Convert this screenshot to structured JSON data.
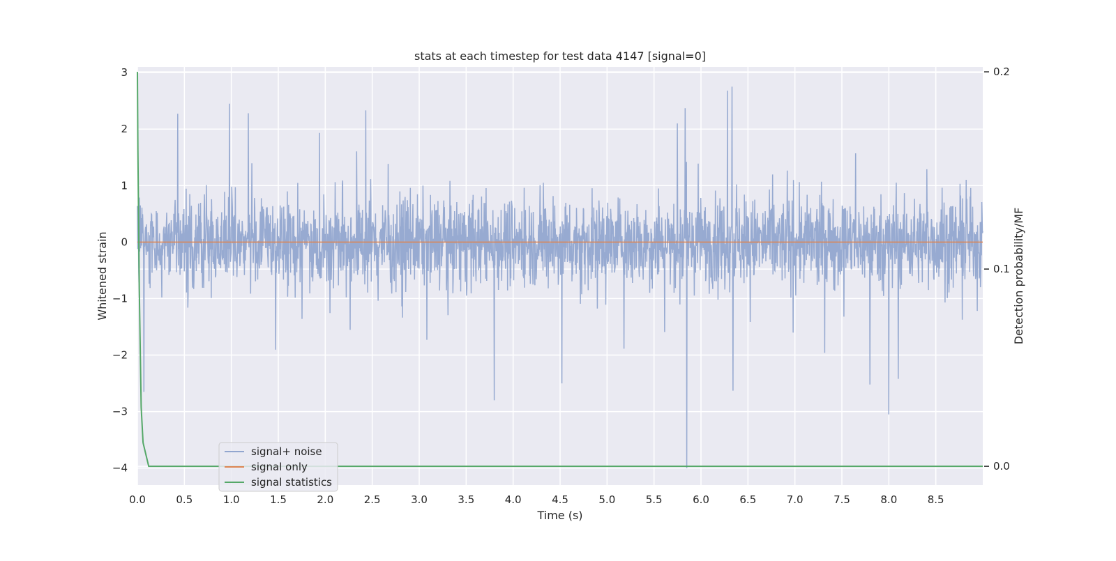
{
  "chart_data": {
    "type": "line",
    "title": "stats at each timestep for test data 4147 [signal=0]",
    "xlabel": "Time (s)",
    "ylabel": "Whitened strain",
    "y2label": "Detection probability/MF",
    "xlim": [
      0.0,
      9.0
    ],
    "ylim": [
      -4.3,
      3.1
    ],
    "y2lim": [
      -0.0095,
      0.2025
    ],
    "xticks": [
      "0.0",
      "0.5",
      "1.0",
      "1.5",
      "2.0",
      "2.5",
      "3.0",
      "3.5",
      "4.0",
      "4.5",
      "5.0",
      "5.5",
      "6.0",
      "6.5",
      "7.0",
      "7.5",
      "8.0",
      "8.5"
    ],
    "yticks": [
      "3",
      "2",
      "1",
      "0",
      "−1",
      "−2",
      "−3",
      "−4"
    ],
    "y2ticks": [
      "0.2",
      "0.1",
      "0.0"
    ],
    "grid": true,
    "legend_position": "lower-left",
    "series": [
      {
        "name": "signal+ noise",
        "color": "#92a6cf",
        "axis": "left",
        "description": "whitened noise fluctuating roughly between -1.5 and 1.5",
        "notable_peaks": [
          {
            "x": 0.43,
            "y": 2.27
          },
          {
            "x": 0.98,
            "y": 2.45
          },
          {
            "x": 1.18,
            "y": 2.28
          },
          {
            "x": 2.43,
            "y": 2.33
          },
          {
            "x": 6.33,
            "y": 2.75
          },
          {
            "x": 6.28,
            "y": 2.68
          },
          {
            "x": 5.83,
            "y": 2.37
          }
        ],
        "notable_troughs": [
          {
            "x": 0.07,
            "y": -2.65
          },
          {
            "x": 3.8,
            "y": -2.8
          },
          {
            "x": 4.52,
            "y": -2.5
          },
          {
            "x": 5.85,
            "y": -4.0
          },
          {
            "x": 6.34,
            "y": -2.63
          },
          {
            "x": 8.0,
            "y": -3.05
          },
          {
            "x": 7.8,
            "y": -2.52
          },
          {
            "x": 8.1,
            "y": -2.42
          }
        ]
      },
      {
        "name": "signal only",
        "color": "#dd8452",
        "axis": "left",
        "x": [
          0.0,
          9.0
        ],
        "values": [
          0.0,
          0.0
        ]
      },
      {
        "name": "signal statistics",
        "color": "#55a868",
        "axis": "right",
        "x": [
          0.0,
          0.005,
          0.02,
          0.04,
          0.06,
          0.12,
          9.0
        ],
        "values": [
          0.2,
          0.16,
          0.09,
          0.03,
          0.012,
          0.0,
          0.0
        ]
      }
    ]
  }
}
